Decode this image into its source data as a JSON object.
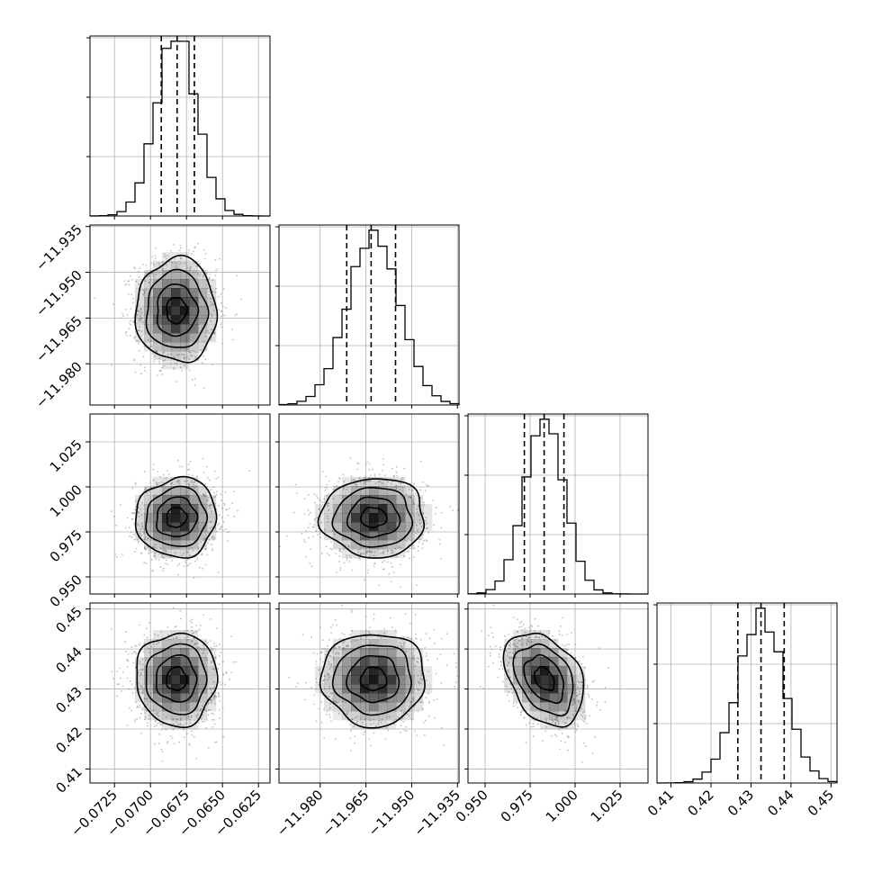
{
  "chart_data": {
    "type": "corner",
    "parameters": [
      {
        "mean": -0.0682,
        "std": 0.0014,
        "range": [
          -0.0742,
          -0.0617
        ],
        "quantiles": [
          -0.06925,
          -0.06815,
          -0.06695
        ],
        "ticks": [
          -0.0725,
          -0.07,
          -0.0675,
          -0.065,
          -0.0625
        ],
        "tick_labels": [
          "−0.0725",
          "−0.0700",
          "−0.0675",
          "−0.0650",
          "−0.0625"
        ]
      },
      {
        "mean": -11.9625,
        "std": 0.0085,
        "range": [
          -11.9935,
          -11.9345
        ],
        "quantiles": [
          -11.9713,
          -11.9633,
          -11.9553
        ],
        "ticks": [
          -11.98,
          -11.965,
          -11.95,
          -11.935
        ],
        "tick_labels": [
          "−11.980",
          "−11.965",
          "−11.950",
          "−11.935"
        ]
      },
      {
        "mean": 0.983,
        "std": 0.011,
        "range": [
          0.9405,
          1.0405
        ],
        "quantiles": [
          0.9718,
          0.9828,
          0.9938
        ],
        "ticks": [
          0.95,
          0.975,
          1.0,
          1.025
        ],
        "tick_labels": [
          "0.950",
          "0.975",
          "1.000",
          "1.025"
        ]
      },
      {
        "mean": 0.4325,
        "std": 0.0058,
        "range": [
          0.4065,
          0.4515
        ],
        "quantiles": [
          0.4267,
          0.4325,
          0.4383
        ],
        "ticks": [
          0.41,
          0.42,
          0.43,
          0.44,
          0.45
        ],
        "tick_labels": [
          "0.41",
          "0.42",
          "0.43",
          "0.44",
          "0.45"
        ]
      }
    ],
    "correlations": {
      "0-1": 0.0,
      "0-2": 0.05,
      "1-2": 0.0,
      "0-3": 0.0,
      "1-3": 0.0,
      "2-3": -0.35
    },
    "histogram_bins": 20,
    "grid": true,
    "contour_levels_sigma": [
      0.5,
      1.0,
      1.5,
      2.0
    ],
    "colors": {
      "line": "#000000",
      "density": "#000000",
      "points": "#8a8a8a",
      "grid": "#b0b0b0"
    }
  }
}
